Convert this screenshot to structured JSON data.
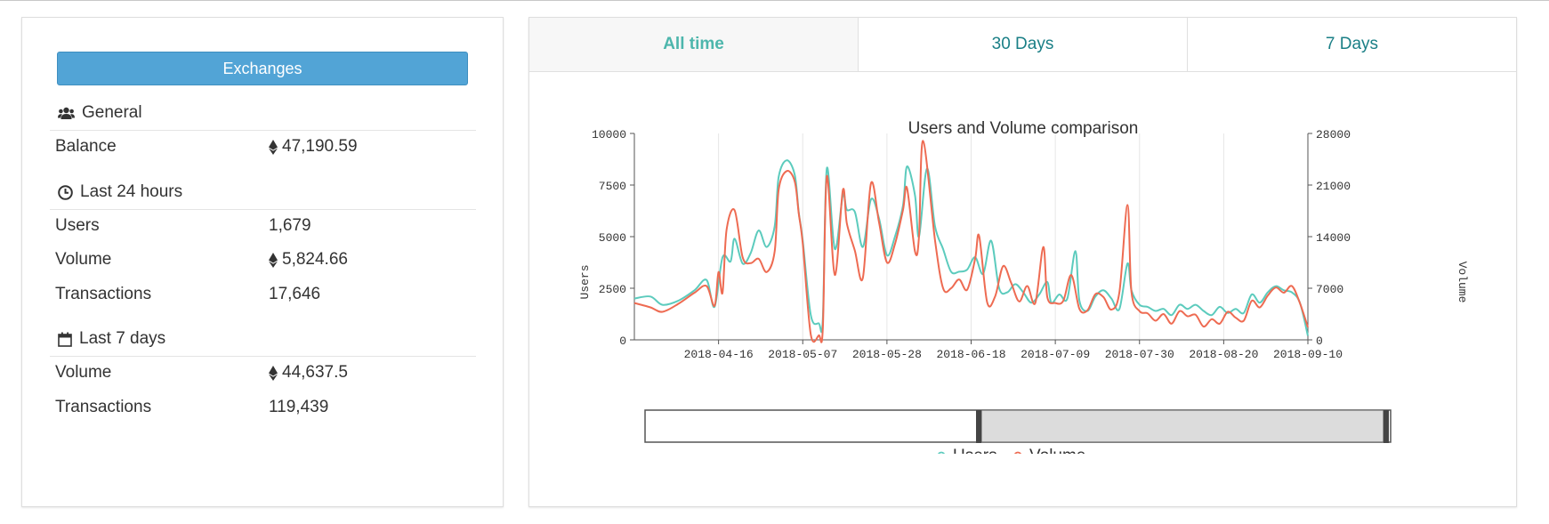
{
  "left": {
    "exchanges_button": "Exchanges",
    "general": {
      "heading": "General",
      "balance_label": "Balance",
      "balance_value": "47,190.59"
    },
    "last24": {
      "heading": "Last 24 hours",
      "users_label": "Users",
      "users_value": "1,679",
      "volume_label": "Volume",
      "volume_value": "5,824.66",
      "tx_label": "Transactions",
      "tx_value": "17,646"
    },
    "last7": {
      "heading": "Last 7 days",
      "volume_label": "Volume",
      "volume_value": "44,637.5",
      "tx_label": "Transactions",
      "tx_value": "119,439"
    }
  },
  "tabs": [
    {
      "label": "All time",
      "active": true
    },
    {
      "label": "30 Days",
      "active": false
    },
    {
      "label": "7 Days",
      "active": false
    }
  ],
  "icons": {
    "general": "users-icon",
    "last24": "clock-icon",
    "last7": "calendar-icon",
    "currency": "ethereum-icon"
  },
  "colors": {
    "button": "#52a4d6",
    "tab_text": "#1a7f86",
    "tab_active_text": "#4db6ac",
    "users_series": "#5ccbbd",
    "volume_series": "#ee6b52"
  },
  "chart_data": {
    "type": "line",
    "title": "Users and Volume comparison",
    "y_left_label": "Users",
    "y_right_label": "Volume",
    "x_tick_labels": [
      "2018-04-16",
      "2018-05-07",
      "2018-05-28",
      "2018-06-18",
      "2018-07-09",
      "2018-07-30",
      "2018-08-20",
      "2018-09-10"
    ],
    "y_left_ticks": [
      0,
      2500,
      5000,
      7500,
      10000
    ],
    "y_right_ticks": [
      0,
      7000,
      14000,
      21000,
      28000
    ],
    "y_left_range": [
      0,
      10000
    ],
    "y_right_range": [
      0,
      28000
    ],
    "x_range": [
      "2018-03-26",
      "2018-09-10"
    ],
    "grid": "vertical",
    "legend": "bottom",
    "series": [
      {
        "name": "Users",
        "axis": "left",
        "points": [
          [
            "2018-03-26",
            2000
          ],
          [
            "2018-03-30",
            2100
          ],
          [
            "2018-04-02",
            1700
          ],
          [
            "2018-04-06",
            1900
          ],
          [
            "2018-04-10",
            2400
          ],
          [
            "2018-04-13",
            2900
          ],
          [
            "2018-04-15",
            1600
          ],
          [
            "2018-04-17",
            4000
          ],
          [
            "2018-04-19",
            3800
          ],
          [
            "2018-04-20",
            4900
          ],
          [
            "2018-04-22",
            3700
          ],
          [
            "2018-04-24",
            4200
          ],
          [
            "2018-04-26",
            5300
          ],
          [
            "2018-04-28",
            4500
          ],
          [
            "2018-04-30",
            5500
          ],
          [
            "2018-05-01",
            7900
          ],
          [
            "2018-05-03",
            8700
          ],
          [
            "2018-05-05",
            8000
          ],
          [
            "2018-05-06",
            6200
          ],
          [
            "2018-05-07",
            4800
          ],
          [
            "2018-05-09",
            1200
          ],
          [
            "2018-05-11",
            800
          ],
          [
            "2018-05-12",
            1000
          ],
          [
            "2018-05-13",
            8300
          ],
          [
            "2018-05-15",
            4400
          ],
          [
            "2018-05-17",
            7000
          ],
          [
            "2018-05-18",
            6300
          ],
          [
            "2018-05-20",
            6200
          ],
          [
            "2018-05-22",
            4500
          ],
          [
            "2018-05-24",
            6800
          ],
          [
            "2018-05-26",
            5900
          ],
          [
            "2018-05-28",
            4100
          ],
          [
            "2018-05-30",
            5000
          ],
          [
            "2018-06-01",
            6500
          ],
          [
            "2018-06-02",
            8400
          ],
          [
            "2018-06-04",
            7000
          ],
          [
            "2018-06-05",
            5000
          ],
          [
            "2018-06-07",
            8300
          ],
          [
            "2018-06-09",
            5500
          ],
          [
            "2018-06-11",
            4400
          ],
          [
            "2018-06-13",
            3300
          ],
          [
            "2018-06-15",
            3300
          ],
          [
            "2018-06-17",
            3400
          ],
          [
            "2018-06-19",
            4000
          ],
          [
            "2018-06-21",
            3200
          ],
          [
            "2018-06-23",
            4800
          ],
          [
            "2018-06-25",
            2500
          ],
          [
            "2018-06-27",
            2300
          ],
          [
            "2018-06-29",
            2700
          ],
          [
            "2018-07-01",
            2300
          ],
          [
            "2018-07-03",
            1800
          ],
          [
            "2018-07-05",
            2200
          ],
          [
            "2018-07-07",
            2800
          ],
          [
            "2018-07-08",
            1800
          ],
          [
            "2018-07-10",
            2200
          ],
          [
            "2018-07-12",
            2000
          ],
          [
            "2018-07-14",
            4300
          ],
          [
            "2018-07-15",
            1900
          ],
          [
            "2018-07-17",
            1400
          ],
          [
            "2018-07-19",
            2100
          ],
          [
            "2018-07-21",
            2400
          ],
          [
            "2018-07-23",
            2000
          ],
          [
            "2018-07-25",
            1500
          ],
          [
            "2018-07-27",
            3700
          ],
          [
            "2018-07-28",
            2400
          ],
          [
            "2018-07-30",
            1700
          ],
          [
            "2018-08-01",
            1600
          ],
          [
            "2018-08-03",
            1400
          ],
          [
            "2018-08-05",
            1500
          ],
          [
            "2018-08-07",
            1200
          ],
          [
            "2018-08-09",
            1700
          ],
          [
            "2018-08-11",
            1500
          ],
          [
            "2018-08-13",
            1700
          ],
          [
            "2018-08-15",
            1400
          ],
          [
            "2018-08-17",
            1200
          ],
          [
            "2018-08-19",
            1600
          ],
          [
            "2018-08-21",
            1300
          ],
          [
            "2018-08-23",
            1500
          ],
          [
            "2018-08-25",
            1300
          ],
          [
            "2018-08-27",
            2200
          ],
          [
            "2018-08-29",
            1800
          ],
          [
            "2018-08-31",
            2300
          ],
          [
            "2018-09-02",
            2600
          ],
          [
            "2018-09-04",
            2400
          ],
          [
            "2018-09-06",
            2300
          ],
          [
            "2018-09-08",
            1800
          ],
          [
            "2018-09-10",
            200
          ]
        ]
      },
      {
        "name": "Volume",
        "axis": "right",
        "points": [
          [
            "2018-03-26",
            5000
          ],
          [
            "2018-03-30",
            4400
          ],
          [
            "2018-04-02",
            3800
          ],
          [
            "2018-04-06",
            4900
          ],
          [
            "2018-04-10",
            6400
          ],
          [
            "2018-04-13",
            7300
          ],
          [
            "2018-04-15",
            4600
          ],
          [
            "2018-04-16",
            9200
          ],
          [
            "2018-04-17",
            6400
          ],
          [
            "2018-04-18",
            14900
          ],
          [
            "2018-04-20",
            17600
          ],
          [
            "2018-04-22",
            11200
          ],
          [
            "2018-04-24",
            10400
          ],
          [
            "2018-04-26",
            11000
          ],
          [
            "2018-04-28",
            9200
          ],
          [
            "2018-04-30",
            12000
          ],
          [
            "2018-05-01",
            20400
          ],
          [
            "2018-05-03",
            22900
          ],
          [
            "2018-05-05",
            21500
          ],
          [
            "2018-05-06",
            17200
          ],
          [
            "2018-05-07",
            13000
          ],
          [
            "2018-05-09",
            700
          ],
          [
            "2018-05-11",
            600
          ],
          [
            "2018-05-12",
            1500
          ],
          [
            "2018-05-13",
            22200
          ],
          [
            "2018-05-15",
            8800
          ],
          [
            "2018-05-17",
            20300
          ],
          [
            "2018-05-18",
            15800
          ],
          [
            "2018-05-20",
            12100
          ],
          [
            "2018-05-22",
            8400
          ],
          [
            "2018-05-24",
            21200
          ],
          [
            "2018-05-26",
            16000
          ],
          [
            "2018-05-28",
            10500
          ],
          [
            "2018-05-30",
            13000
          ],
          [
            "2018-06-01",
            17600
          ],
          [
            "2018-06-02",
            20600
          ],
          [
            "2018-06-04",
            12000
          ],
          [
            "2018-06-05",
            14000
          ],
          [
            "2018-06-06",
            27000
          ],
          [
            "2018-06-09",
            13500
          ],
          [
            "2018-06-11",
            7000
          ],
          [
            "2018-06-13",
            7000
          ],
          [
            "2018-06-15",
            8200
          ],
          [
            "2018-06-17",
            6800
          ],
          [
            "2018-06-19",
            11000
          ],
          [
            "2018-06-20",
            14100
          ],
          [
            "2018-06-22",
            5100
          ],
          [
            "2018-06-24",
            5900
          ],
          [
            "2018-06-26",
            10000
          ],
          [
            "2018-06-28",
            7700
          ],
          [
            "2018-06-30",
            5200
          ],
          [
            "2018-07-02",
            7300
          ],
          [
            "2018-07-04",
            5000
          ],
          [
            "2018-07-06",
            12600
          ],
          [
            "2018-07-07",
            5800
          ],
          [
            "2018-07-09",
            5000
          ],
          [
            "2018-07-11",
            5300
          ],
          [
            "2018-07-13",
            8800
          ],
          [
            "2018-07-15",
            4200
          ],
          [
            "2018-07-17",
            4000
          ],
          [
            "2018-07-19",
            6200
          ],
          [
            "2018-07-21",
            5800
          ],
          [
            "2018-07-23",
            4100
          ],
          [
            "2018-07-25",
            6500
          ],
          [
            "2018-07-27",
            18300
          ],
          [
            "2018-07-28",
            6500
          ],
          [
            "2018-07-30",
            3900
          ],
          [
            "2018-08-01",
            3600
          ],
          [
            "2018-08-03",
            2600
          ],
          [
            "2018-08-05",
            3500
          ],
          [
            "2018-08-07",
            2200
          ],
          [
            "2018-08-09",
            3900
          ],
          [
            "2018-08-11",
            3200
          ],
          [
            "2018-08-13",
            3400
          ],
          [
            "2018-08-15",
            1800
          ],
          [
            "2018-08-17",
            2800
          ],
          [
            "2018-08-19",
            2200
          ],
          [
            "2018-08-21",
            3800
          ],
          [
            "2018-08-23",
            3000
          ],
          [
            "2018-08-25",
            2600
          ],
          [
            "2018-08-27",
            5300
          ],
          [
            "2018-08-29",
            4400
          ],
          [
            "2018-08-31",
            6000
          ],
          [
            "2018-09-02",
            7100
          ],
          [
            "2018-09-04",
            6400
          ],
          [
            "2018-09-06",
            7300
          ],
          [
            "2018-09-08",
            5000
          ],
          [
            "2018-09-10",
            1700
          ]
        ]
      }
    ]
  }
}
